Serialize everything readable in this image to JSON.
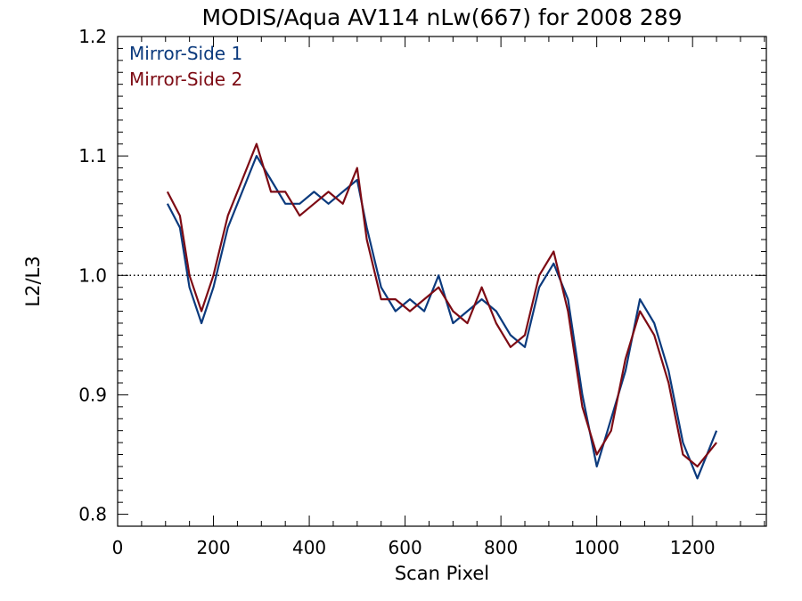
{
  "chart_data": {
    "type": "line",
    "title": "MODIS/Aqua AV114 nLw(667) for 2008 289",
    "xlabel": "Scan Pixel",
    "ylabel": "L2/L3",
    "xlim": [
      0,
      1354
    ],
    "ylim": [
      0.79,
      1.2
    ],
    "x_ticks": [
      0,
      200,
      400,
      600,
      800,
      1000,
      1200
    ],
    "x_tick_labels": [
      "0",
      "200",
      "400",
      "600",
      "800",
      "1000",
      "1200"
    ],
    "y_ticks": [
      0.8,
      0.9,
      1.0,
      1.1,
      1.2
    ],
    "y_tick_labels": [
      "0.8",
      "0.9",
      "1.0",
      "1.1",
      "1.2"
    ],
    "reference_line": {
      "y": 1.0,
      "style": "dotted"
    },
    "grid": false,
    "legend_position": "top-left",
    "x": [
      104,
      130,
      150,
      175,
      200,
      230,
      260,
      290,
      320,
      350,
      380,
      410,
      440,
      470,
      500,
      520,
      550,
      580,
      610,
      640,
      670,
      700,
      730,
      760,
      790,
      820,
      850,
      880,
      910,
      940,
      970,
      1000,
      1030,
      1060,
      1090,
      1120,
      1150,
      1180,
      1210,
      1250
    ],
    "series": [
      {
        "name": "Mirror-Side 1",
        "color": "#0b3a7d",
        "values": [
          1.06,
          1.04,
          0.99,
          0.96,
          0.99,
          1.04,
          1.07,
          1.1,
          1.08,
          1.06,
          1.06,
          1.07,
          1.06,
          1.07,
          1.08,
          1.04,
          0.99,
          0.97,
          0.98,
          0.97,
          1.0,
          0.96,
          0.97,
          0.98,
          0.97,
          0.95,
          0.94,
          0.99,
          1.01,
          0.98,
          0.9,
          0.84,
          0.88,
          0.92,
          0.98,
          0.96,
          0.92,
          0.86,
          0.83,
          0.87
        ]
      },
      {
        "name": "Mirror-Side 2",
        "color": "#7d0b14",
        "values": [
          1.07,
          1.05,
          1.0,
          0.97,
          1.0,
          1.05,
          1.08,
          1.11,
          1.07,
          1.07,
          1.05,
          1.06,
          1.07,
          1.06,
          1.09,
          1.03,
          0.98,
          0.98,
          0.97,
          0.98,
          0.99,
          0.97,
          0.96,
          0.99,
          0.96,
          0.94,
          0.95,
          1.0,
          1.02,
          0.97,
          0.89,
          0.85,
          0.87,
          0.93,
          0.97,
          0.95,
          0.91,
          0.85,
          0.84,
          0.86
        ]
      }
    ]
  }
}
